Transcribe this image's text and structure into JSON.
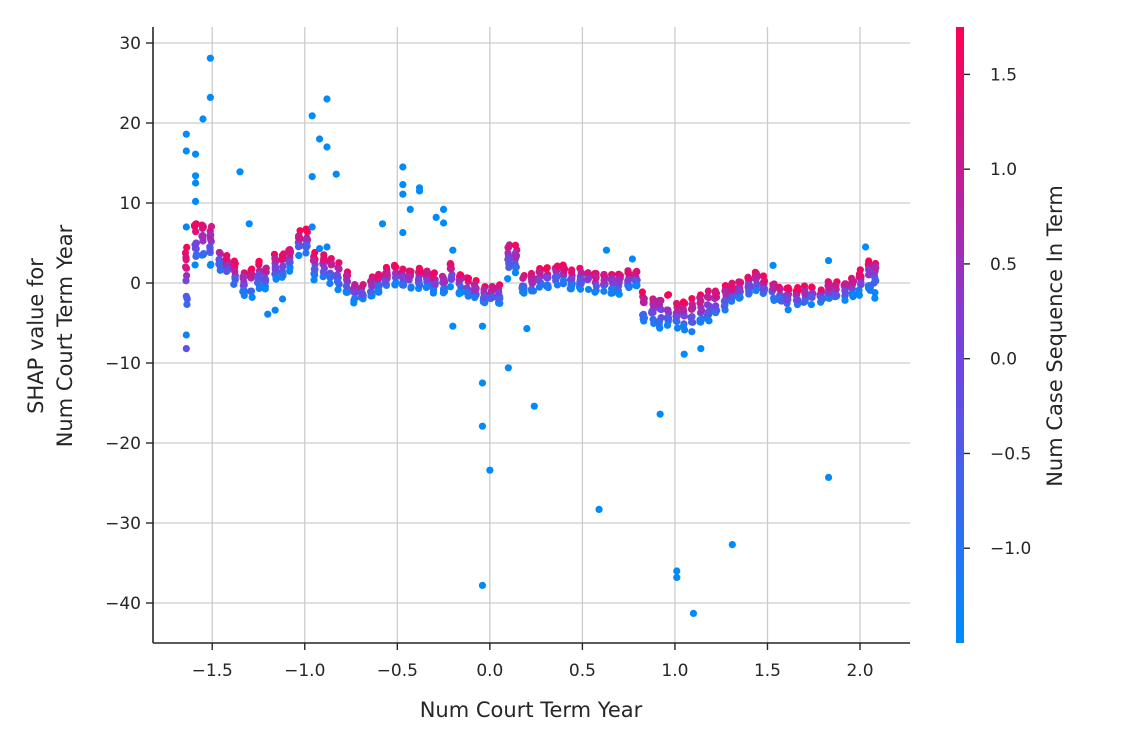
{
  "chart_data": {
    "type": "scatter",
    "title": "",
    "xlabel": "Num  Court Term Year",
    "ylabel_lines": [
      "SHAP value for",
      "Num  Court Term Year"
    ],
    "xlim": [
      -1.82,
      2.27
    ],
    "ylim": [
      -45,
      32
    ],
    "xticks": [
      -1.5,
      -1.0,
      -0.5,
      0.0,
      0.5,
      1.0,
      1.5,
      2.0
    ],
    "xtick_labels": [
      "−1.5",
      "−1.0",
      "−0.5",
      "0.0",
      "0.5",
      "1.0",
      "1.5",
      "2.0"
    ],
    "yticks": [
      30,
      20,
      10,
      0,
      -10,
      -20,
      -30,
      -40
    ],
    "ytick_labels": [
      "30",
      "20",
      "10",
      "0",
      "−10",
      "−20",
      "−30",
      "−40"
    ],
    "grid": true,
    "colorbar": {
      "label": "Num  Case Sequence In Term",
      "range": [
        -1.5,
        1.75
      ],
      "ticks": [
        1.5,
        1.0,
        0.5,
        0.0,
        -0.5,
        -1.0
      ],
      "tick_labels": [
        "1.5",
        "1.0",
        "0.5",
        "0.0",
        "−0.5",
        "−1.0"
      ],
      "colors": [
        "#008bfb",
        "#7d3fdb",
        "#ff0052"
      ]
    },
    "clusters": [
      {
        "x": -1.64,
        "base": 0,
        "spread": 4
      },
      {
        "x": -1.59,
        "base": 5,
        "spread": 2.5
      },
      {
        "x": -1.55,
        "base": 5,
        "spread": 2.5
      },
      {
        "x": -1.51,
        "base": 5,
        "spread": 2.5
      },
      {
        "x": -1.46,
        "base": 3,
        "spread": 1.5
      },
      {
        "x": -1.42,
        "base": 2,
        "spread": 1.5
      },
      {
        "x": -1.38,
        "base": 1,
        "spread": 1.5
      },
      {
        "x": -1.33,
        "base": 0,
        "spread": 1.5
      },
      {
        "x": -1.29,
        "base": 0,
        "spread": 1.5
      },
      {
        "x": -1.25,
        "base": 1,
        "spread": 1.5
      },
      {
        "x": -1.21,
        "base": 1,
        "spread": 1.5
      },
      {
        "x": -1.16,
        "base": 2,
        "spread": 1.5
      },
      {
        "x": -1.12,
        "base": 2,
        "spread": 1.5
      },
      {
        "x": -1.08,
        "base": 3,
        "spread": 1.5
      },
      {
        "x": -1.03,
        "base": 5,
        "spread": 1.5
      },
      {
        "x": -0.99,
        "base": 5,
        "spread": 1.5
      },
      {
        "x": -0.95,
        "base": 2,
        "spread": 1.5
      },
      {
        "x": -0.9,
        "base": 2,
        "spread": 1.5
      },
      {
        "x": -0.86,
        "base": 1.5,
        "spread": 1.5
      },
      {
        "x": -0.82,
        "base": 1,
        "spread": 1.5
      },
      {
        "x": -0.77,
        "base": 0,
        "spread": 1.5
      },
      {
        "x": -0.73,
        "base": -1,
        "spread": 1.2
      },
      {
        "x": -0.69,
        "base": -1,
        "spread": 1.2
      },
      {
        "x": -0.64,
        "base": -0.5,
        "spread": 1.2
      },
      {
        "x": -0.6,
        "base": 0,
        "spread": 1.2
      },
      {
        "x": -0.56,
        "base": 0.5,
        "spread": 1.2
      },
      {
        "x": -0.51,
        "base": 1,
        "spread": 1.2
      },
      {
        "x": -0.47,
        "base": 0.5,
        "spread": 1.2
      },
      {
        "x": -0.43,
        "base": 0.5,
        "spread": 1.2
      },
      {
        "x": -0.38,
        "base": 0.5,
        "spread": 1.2
      },
      {
        "x": -0.34,
        "base": 0.5,
        "spread": 1.2
      },
      {
        "x": -0.3,
        "base": 0,
        "spread": 1.2
      },
      {
        "x": -0.25,
        "base": 0,
        "spread": 1.2
      },
      {
        "x": -0.21,
        "base": 1,
        "spread": 1.5
      },
      {
        "x": -0.16,
        "base": 0,
        "spread": 1.5
      },
      {
        "x": -0.12,
        "base": -0.5,
        "spread": 1.2
      },
      {
        "x": -0.08,
        "base": -1,
        "spread": 1.2
      },
      {
        "x": -0.03,
        "base": -1.5,
        "spread": 1.2
      },
      {
        "x": 0.01,
        "base": -1.5,
        "spread": 1.2
      },
      {
        "x": 0.05,
        "base": -1.5,
        "spread": 1.2
      },
      {
        "x": 0.1,
        "base": 3,
        "spread": 2
      },
      {
        "x": 0.14,
        "base": 3,
        "spread": 2
      },
      {
        "x": 0.18,
        "base": 0,
        "spread": 1.2
      },
      {
        "x": 0.23,
        "base": 0,
        "spread": 1.2
      },
      {
        "x": 0.27,
        "base": 0.5,
        "spread": 1.2
      },
      {
        "x": 0.31,
        "base": 0.5,
        "spread": 1.2
      },
      {
        "x": 0.36,
        "base": 1,
        "spread": 1.2
      },
      {
        "x": 0.4,
        "base": 1,
        "spread": 1.2
      },
      {
        "x": 0.44,
        "base": 0.5,
        "spread": 1.2
      },
      {
        "x": 0.49,
        "base": 0.5,
        "spread": 1.2
      },
      {
        "x": 0.53,
        "base": 0.5,
        "spread": 1.2
      },
      {
        "x": 0.57,
        "base": 0,
        "spread": 1.2
      },
      {
        "x": 0.62,
        "base": 0,
        "spread": 1.2
      },
      {
        "x": 0.66,
        "base": 0,
        "spread": 1.2
      },
      {
        "x": 0.7,
        "base": 0,
        "spread": 1.2
      },
      {
        "x": 0.75,
        "base": 0.5,
        "spread": 1.2
      },
      {
        "x": 0.79,
        "base": 0.5,
        "spread": 1.2
      },
      {
        "x": 0.83,
        "base": -3,
        "spread": 1.8
      },
      {
        "x": 0.88,
        "base": -3.5,
        "spread": 1.8
      },
      {
        "x": 0.92,
        "base": -3.5,
        "spread": 1.8
      },
      {
        "x": 0.96,
        "base": -3.5,
        "spread": 1.8
      },
      {
        "x": 1.01,
        "base": -4,
        "spread": 2
      },
      {
        "x": 1.05,
        "base": -4,
        "spread": 2
      },
      {
        "x": 1.09,
        "base": -4,
        "spread": 2
      },
      {
        "x": 1.14,
        "base": -3.5,
        "spread": 2
      },
      {
        "x": 1.18,
        "base": -3,
        "spread": 2
      },
      {
        "x": 1.22,
        "base": -2.5,
        "spread": 1.5
      },
      {
        "x": 1.27,
        "base": -2,
        "spread": 1.5
      },
      {
        "x": 1.31,
        "base": -1.5,
        "spread": 1.5
      },
      {
        "x": 1.35,
        "base": -1,
        "spread": 1.2
      },
      {
        "x": 1.4,
        "base": -0.5,
        "spread": 1.2
      },
      {
        "x": 1.44,
        "base": 0,
        "spread": 1.2
      },
      {
        "x": 1.48,
        "base": -0.5,
        "spread": 1.2
      },
      {
        "x": 1.53,
        "base": -1,
        "spread": 1.2
      },
      {
        "x": 1.57,
        "base": -1.5,
        "spread": 1.2
      },
      {
        "x": 1.61,
        "base": -2,
        "spread": 1.2
      },
      {
        "x": 1.66,
        "base": -2,
        "spread": 1.2
      },
      {
        "x": 1.7,
        "base": -1.5,
        "spread": 1.2
      },
      {
        "x": 1.74,
        "base": -1.5,
        "spread": 1.2
      },
      {
        "x": 1.79,
        "base": -1.5,
        "spread": 1.2
      },
      {
        "x": 1.83,
        "base": -1,
        "spread": 1.2
      },
      {
        "x": 1.87,
        "base": -1,
        "spread": 1.2
      },
      {
        "x": 1.92,
        "base": -1,
        "spread": 1.2
      },
      {
        "x": 1.96,
        "base": -0.5,
        "spread": 1.2
      },
      {
        "x": 2.0,
        "base": 0,
        "spread": 1.5
      },
      {
        "x": 2.05,
        "base": 1,
        "spread": 2
      },
      {
        "x": 2.08,
        "base": 1,
        "spread": 2
      }
    ],
    "points": [
      {
        "x": -1.64,
        "y": 18.6,
        "c": -1.5
      },
      {
        "x": -1.64,
        "y": 16.5,
        "c": -1.5
      },
      {
        "x": -1.59,
        "y": 16.1,
        "c": -1.5
      },
      {
        "x": -1.59,
        "y": 13.4,
        "c": -1.5
      },
      {
        "x": -1.59,
        "y": 12.5,
        "c": -1.5
      },
      {
        "x": -1.59,
        "y": 10.2,
        "c": -1.5
      },
      {
        "x": -1.55,
        "y": 20.5,
        "c": -1.5
      },
      {
        "x": -1.51,
        "y": 28.1,
        "c": -1.5
      },
      {
        "x": -1.51,
        "y": 23.2,
        "c": -1.5
      },
      {
        "x": -1.64,
        "y": 7.0,
        "c": -1.4
      },
      {
        "x": -1.64,
        "y": -8.2,
        "c": -0.2
      },
      {
        "x": -1.64,
        "y": -6.5,
        "c": -1.3
      },
      {
        "x": -1.35,
        "y": 13.9,
        "c": -1.5
      },
      {
        "x": -1.3,
        "y": 7.4,
        "c": -1.5
      },
      {
        "x": -1.2,
        "y": -3.9,
        "c": -1.4
      },
      {
        "x": -1.16,
        "y": -3.4,
        "c": -1.4
      },
      {
        "x": -1.12,
        "y": -2.0,
        "c": -1.4
      },
      {
        "x": -0.96,
        "y": 20.9,
        "c": -1.5
      },
      {
        "x": -0.96,
        "y": 13.3,
        "c": -1.5
      },
      {
        "x": -0.96,
        "y": 7.0,
        "c": -1.4
      },
      {
        "x": -0.92,
        "y": 18.0,
        "c": -1.5
      },
      {
        "x": -0.88,
        "y": 23.0,
        "c": -1.5
      },
      {
        "x": -0.88,
        "y": 17.0,
        "c": -1.5
      },
      {
        "x": -0.83,
        "y": 13.6,
        "c": -1.5
      },
      {
        "x": -0.88,
        "y": 4.5,
        "c": -1.4
      },
      {
        "x": -0.92,
        "y": 4.3,
        "c": -1.4
      },
      {
        "x": -0.58,
        "y": 7.4,
        "c": -1.5
      },
      {
        "x": -0.47,
        "y": 14.5,
        "c": -1.5
      },
      {
        "x": -0.47,
        "y": 12.3,
        "c": -1.5
      },
      {
        "x": -0.47,
        "y": 11.1,
        "c": -1.5
      },
      {
        "x": -0.47,
        "y": 6.3,
        "c": -1.5
      },
      {
        "x": -0.43,
        "y": 9.2,
        "c": -1.5
      },
      {
        "x": -0.38,
        "y": 11.9,
        "c": -1.5
      },
      {
        "x": -0.38,
        "y": 11.5,
        "c": -1.5
      },
      {
        "x": -0.29,
        "y": 8.2,
        "c": -1.5
      },
      {
        "x": -0.25,
        "y": 9.2,
        "c": -1.5
      },
      {
        "x": -0.25,
        "y": 7.5,
        "c": -1.5
      },
      {
        "x": -0.2,
        "y": 4.1,
        "c": -1.5
      },
      {
        "x": -0.2,
        "y": -5.4,
        "c": -1.5
      },
      {
        "x": -0.04,
        "y": -5.4,
        "c": -1.5
      },
      {
        "x": -0.04,
        "y": -12.5,
        "c": -1.5
      },
      {
        "x": -0.04,
        "y": -17.9,
        "c": -1.5
      },
      {
        "x": -0.04,
        "y": -37.8,
        "c": -1.5
      },
      {
        "x": 0.0,
        "y": -23.4,
        "c": -1.5
      },
      {
        "x": 0.1,
        "y": -10.6,
        "c": -1.5
      },
      {
        "x": 0.2,
        "y": -5.7,
        "c": -1.5
      },
      {
        "x": 0.24,
        "y": -15.4,
        "c": -1.5
      },
      {
        "x": 0.59,
        "y": -28.3,
        "c": -1.5
      },
      {
        "x": 0.63,
        "y": 4.1,
        "c": -1.5
      },
      {
        "x": 0.77,
        "y": 3.0,
        "c": -1.5
      },
      {
        "x": 0.92,
        "y": -16.4,
        "c": -1.5
      },
      {
        "x": 1.01,
        "y": -36.0,
        "c": -1.5
      },
      {
        "x": 1.01,
        "y": -36.8,
        "c": -1.5
      },
      {
        "x": 1.05,
        "y": -8.9,
        "c": -1.5
      },
      {
        "x": 1.1,
        "y": -41.3,
        "c": -1.5
      },
      {
        "x": 1.14,
        "y": -8.2,
        "c": -1.5
      },
      {
        "x": 1.31,
        "y": -32.7,
        "c": -1.5
      },
      {
        "x": 1.53,
        "y": 2.2,
        "c": -1.5
      },
      {
        "x": 1.83,
        "y": 2.8,
        "c": -1.5
      },
      {
        "x": 1.83,
        "y": -24.3,
        "c": -1.5
      },
      {
        "x": 2.03,
        "y": 4.5,
        "c": -1.5
      },
      {
        "x": 2.08,
        "y": -1.9,
        "c": -1.5
      }
    ]
  }
}
